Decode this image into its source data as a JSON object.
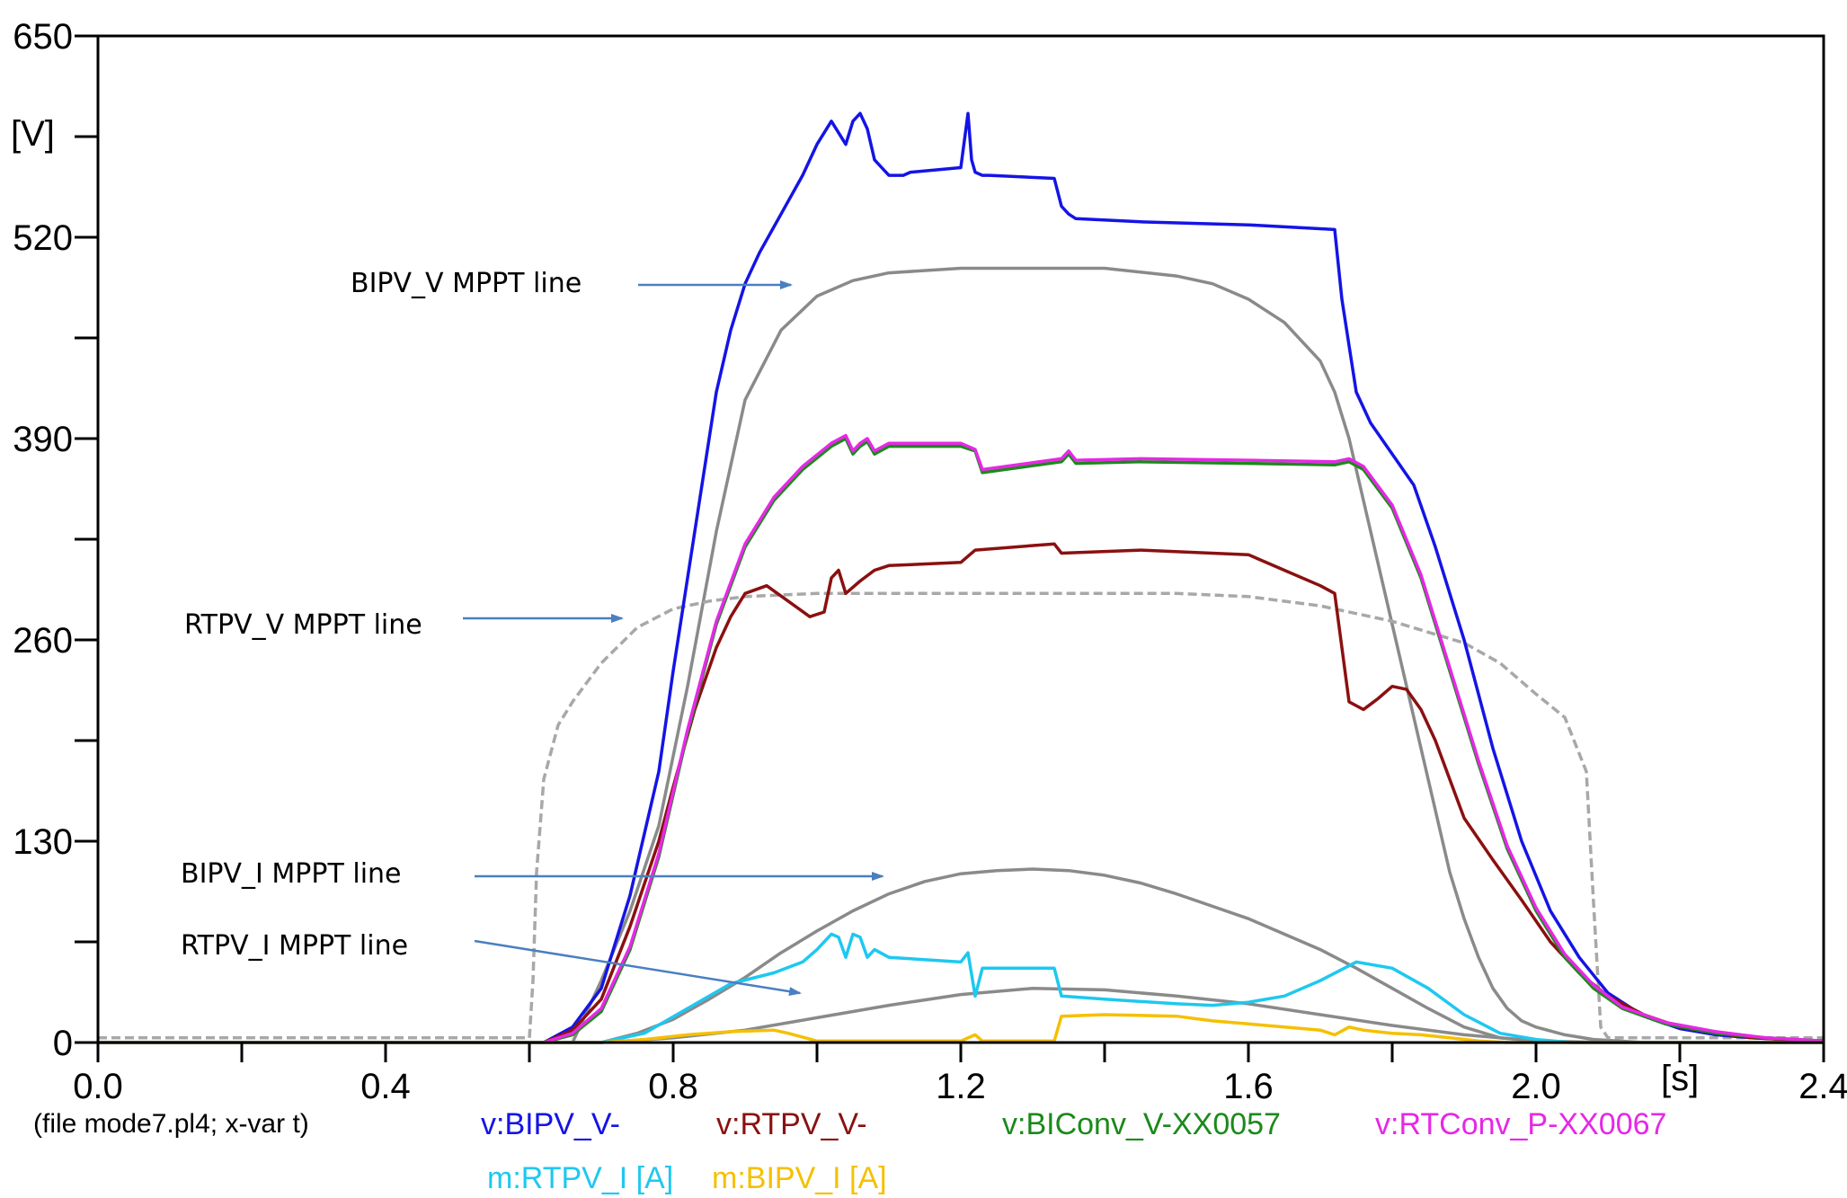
{
  "chart_data": {
    "type": "line",
    "title": "",
    "file_label": "(file mode7.pl4; x-var t)",
    "x_unit": "[s]",
    "y_unit": "[V]",
    "xlim": [
      0.0,
      2.4
    ],
    "ylim": [
      0,
      650
    ],
    "x_ticks": [
      {
        "value": 0.0,
        "label": "0.0"
      },
      {
        "value": 0.4,
        "label": "0.4"
      },
      {
        "value": 0.8,
        "label": "0.8"
      },
      {
        "value": 1.2,
        "label": "1.2"
      },
      {
        "value": 1.6,
        "label": "1.6"
      },
      {
        "value": 2.0,
        "label": "2.0"
      },
      {
        "value": 2.4,
        "label": "2.4"
      }
    ],
    "y_ticks": [
      {
        "value": 0,
        "label": "0"
      },
      {
        "value": 130,
        "label": "130"
      },
      {
        "value": 260,
        "label": "260"
      },
      {
        "value": 390,
        "label": "390"
      },
      {
        "value": 520,
        "label": "520"
      },
      {
        "value": 650,
        "label": "650"
      }
    ],
    "y_minor_ticks": [
      65,
      195,
      325,
      455,
      585
    ],
    "x_minor_ticks": [
      0.2,
      0.6,
      1.0,
      1.4,
      1.8,
      2.2
    ],
    "grid": false,
    "legend": [
      {
        "label": "v:BIPV_V-",
        "color": "#1414e6"
      },
      {
        "label": "v:RTPV_V-",
        "color": "#8b1010"
      },
      {
        "label": "v:BIConv_V-XX0057",
        "color": "#1a8a1a"
      },
      {
        "label": "v:RTConv_P-XX0067",
        "color": "#e628e6"
      },
      {
        "label": "m:RTPV_I [A]",
        "color": "#1ec8f0"
      },
      {
        "label": "m:BIPV_I [A]",
        "color": "#f5c000"
      }
    ],
    "series": [
      {
        "name": "v:BIPV_V-",
        "color": "#1414e6",
        "x": [
          0.0,
          0.62,
          0.66,
          0.7,
          0.74,
          0.78,
          0.8,
          0.83,
          0.86,
          0.88,
          0.9,
          0.92,
          0.95,
          0.98,
          1.0,
          1.02,
          1.04,
          1.05,
          1.06,
          1.07,
          1.08,
          1.09,
          1.1,
          1.12,
          1.13,
          1.2,
          1.21,
          1.215,
          1.22,
          1.23,
          1.24,
          1.33,
          1.34,
          1.35,
          1.36,
          1.45,
          1.6,
          1.72,
          1.73,
          1.74,
          1.75,
          1.76,
          1.77,
          1.8,
          1.83,
          1.86,
          1.9,
          1.94,
          1.98,
          2.02,
          2.06,
          2.1,
          2.15,
          2.2,
          2.25,
          2.3,
          2.35,
          2.4
        ],
        "y": [
          0,
          0,
          10,
          35,
          95,
          175,
          240,
          330,
          420,
          460,
          490,
          510,
          535,
          560,
          580,
          595,
          580,
          595,
          600,
          590,
          570,
          565,
          560,
          560,
          562,
          565,
          600,
          570,
          562,
          560,
          560,
          558,
          540,
          535,
          532,
          530,
          528,
          525,
          480,
          450,
          420,
          410,
          400,
          380,
          360,
          320,
          260,
          190,
          130,
          85,
          55,
          32,
          17,
          9,
          5,
          3,
          2,
          1
        ]
      },
      {
        "name": "v:RTPV_V-",
        "color": "#8b1010",
        "x": [
          0.0,
          0.62,
          0.66,
          0.7,
          0.74,
          0.78,
          0.8,
          0.83,
          0.86,
          0.88,
          0.9,
          0.93,
          0.96,
          0.99,
          1.01,
          1.02,
          1.03,
          1.04,
          1.06,
          1.08,
          1.1,
          1.2,
          1.22,
          1.33,
          1.34,
          1.45,
          1.6,
          1.65,
          1.7,
          1.72,
          1.74,
          1.76,
          1.78,
          1.8,
          1.82,
          1.84,
          1.86,
          1.88,
          1.9,
          1.94,
          1.98,
          2.02,
          2.06,
          2.1,
          2.15,
          2.2,
          2.25,
          2.3,
          2.35,
          2.4
        ],
        "y": [
          0,
          0,
          8,
          28,
          75,
          130,
          165,
          215,
          255,
          275,
          290,
          295,
          285,
          275,
          278,
          300,
          305,
          290,
          298,
          305,
          308,
          310,
          318,
          322,
          316,
          318,
          315,
          305,
          295,
          290,
          220,
          215,
          222,
          230,
          228,
          215,
          195,
          170,
          145,
          118,
          92,
          65,
          45,
          30,
          18,
          10,
          6,
          3,
          2,
          1
        ]
      },
      {
        "name": "v:BIConv_V-XX0057",
        "color": "#1a8a1a",
        "x": [
          0.0,
          0.62,
          0.66,
          0.7,
          0.74,
          0.78,
          0.82,
          0.86,
          0.9,
          0.94,
          0.98,
          1.02,
          1.04,
          1.05,
          1.06,
          1.07,
          1.08,
          1.1,
          1.2,
          1.22,
          1.23,
          1.34,
          1.35,
          1.36,
          1.45,
          1.6,
          1.72,
          1.74,
          1.76,
          1.8,
          1.84,
          1.88,
          1.92,
          1.96,
          2.0,
          2.04,
          2.08,
          2.12,
          2.18,
          2.25,
          2.32,
          2.4
        ],
        "y": [
          0,
          0,
          5,
          20,
          60,
          120,
          200,
          270,
          320,
          350,
          370,
          385,
          390,
          380,
          385,
          388,
          380,
          385,
          385,
          382,
          368,
          375,
          380,
          374,
          375,
          374,
          373,
          375,
          370,
          345,
          300,
          240,
          180,
          125,
          85,
          55,
          35,
          22,
          12,
          6,
          3,
          1
        ]
      },
      {
        "name": "v:RTConv_P-XX0067",
        "color": "#e628e6",
        "x": [
          0.0,
          0.62,
          0.66,
          0.7,
          0.74,
          0.78,
          0.82,
          0.86,
          0.9,
          0.94,
          0.98,
          1.02,
          1.04,
          1.05,
          1.06,
          1.07,
          1.08,
          1.1,
          1.2,
          1.22,
          1.23,
          1.34,
          1.35,
          1.36,
          1.45,
          1.6,
          1.72,
          1.74,
          1.76,
          1.8,
          1.84,
          1.88,
          1.92,
          1.96,
          2.0,
          2.04,
          2.08,
          2.12,
          2.18,
          2.25,
          2.32,
          2.4
        ],
        "y": [
          0,
          0,
          6,
          22,
          62,
          122,
          202,
          272,
          322,
          352,
          372,
          387,
          392,
          382,
          387,
          390,
          382,
          387,
          387,
          383,
          370,
          377,
          382,
          376,
          377,
          376,
          375,
          377,
          372,
          347,
          302,
          242,
          182,
          127,
          87,
          57,
          37,
          23,
          13,
          7,
          3,
          1
        ]
      },
      {
        "name": "m:RTPV_I [A]",
        "color": "#1ec8f0",
        "x": [
          0.0,
          0.7,
          0.76,
          0.82,
          0.88,
          0.94,
          0.98,
          1.0,
          1.02,
          1.03,
          1.04,
          1.05,
          1.06,
          1.07,
          1.08,
          1.1,
          1.2,
          1.21,
          1.22,
          1.23,
          1.33,
          1.34,
          1.4,
          1.5,
          1.55,
          1.6,
          1.65,
          1.7,
          1.75,
          1.8,
          1.85,
          1.9,
          1.95,
          2.0,
          2.05,
          2.1,
          2.2,
          2.4
        ],
        "y": [
          0,
          0,
          6,
          22,
          38,
          45,
          52,
          60,
          70,
          68,
          55,
          70,
          68,
          55,
          60,
          55,
          52,
          58,
          30,
          48,
          48,
          30,
          28,
          25,
          24,
          26,
          30,
          40,
          52,
          48,
          35,
          18,
          6,
          2,
          0,
          0,
          0,
          0
        ]
      },
      {
        "name": "m:BIPV_I [A]",
        "color": "#f5c000",
        "x": [
          0.0,
          0.7,
          0.76,
          0.82,
          0.88,
          0.94,
          0.96,
          1.0,
          1.1,
          1.2,
          1.22,
          1.23,
          1.33,
          1.34,
          1.4,
          1.5,
          1.55,
          1.6,
          1.65,
          1.7,
          1.72,
          1.74,
          1.76,
          1.8,
          1.84,
          1.88,
          1.92,
          1.96,
          2.0,
          2.1,
          2.4
        ],
        "y": [
          0,
          0,
          2,
          5,
          7,
          8,
          6,
          1,
          1,
          1,
          5,
          1,
          1,
          17,
          18,
          17,
          14,
          12,
          10,
          8,
          5,
          10,
          8,
          6,
          5,
          3,
          1,
          0,
          0,
          0,
          0
        ]
      },
      {
        "name": "BIPV_V MPPT line",
        "color": "#8a8a8a",
        "dashed": false,
        "x": [
          0.0,
          0.66,
          0.7,
          0.74,
          0.78,
          0.82,
          0.86,
          0.9,
          0.95,
          1.0,
          1.05,
          1.1,
          1.2,
          1.3,
          1.4,
          1.5,
          1.55,
          1.6,
          1.65,
          1.7,
          1.72,
          1.74,
          1.76,
          1.78,
          1.8,
          1.82,
          1.84,
          1.86,
          1.88,
          1.9,
          1.92,
          1.94,
          1.96,
          1.98,
          2.0,
          2.04,
          2.08,
          2.15,
          2.4
        ],
        "y": [
          0,
          0,
          40,
          85,
          140,
          230,
          330,
          415,
          460,
          482,
          492,
          497,
          500,
          500,
          500,
          495,
          490,
          480,
          465,
          440,
          420,
          390,
          350,
          310,
          270,
          230,
          190,
          150,
          110,
          80,
          55,
          35,
          22,
          14,
          10,
          5,
          2,
          0,
          0
        ]
      },
      {
        "name": "RTPV_V MPPT line",
        "color": "#a8a8a8",
        "dashed": true,
        "x": [
          0.0,
          0.6,
          0.605,
          0.61,
          0.62,
          0.64,
          0.66,
          0.7,
          0.75,
          0.8,
          0.85,
          0.9,
          1.0,
          1.1,
          1.2,
          1.3,
          1.4,
          1.5,
          1.6,
          1.7,
          1.8,
          1.85,
          1.9,
          1.95,
          2.0,
          2.04,
          2.07,
          2.08,
          2.09,
          2.1,
          2.4
        ],
        "y": [
          3,
          3,
          40,
          110,
          170,
          205,
          220,
          245,
          268,
          280,
          285,
          288,
          290,
          290,
          290,
          290,
          290,
          290,
          288,
          282,
          272,
          265,
          258,
          245,
          225,
          210,
          175,
          90,
          10,
          3,
          3
        ]
      },
      {
        "name": "BIPV_I MPPT line",
        "color": "#8a8a8a",
        "dashed": false,
        "x": [
          0.0,
          0.7,
          0.75,
          0.8,
          0.85,
          0.9,
          0.95,
          1.0,
          1.05,
          1.1,
          1.15,
          1.2,
          1.25,
          1.3,
          1.35,
          1.4,
          1.45,
          1.5,
          1.55,
          1.6,
          1.65,
          1.7,
          1.75,
          1.8,
          1.85,
          1.9,
          1.95,
          2.0,
          2.05,
          2.1,
          2.4
        ],
        "y": [
          0,
          0,
          6,
          15,
          28,
          42,
          58,
          72,
          85,
          96,
          104,
          109,
          111,
          112,
          111,
          108,
          103,
          96,
          88,
          80,
          70,
          60,
          48,
          35,
          22,
          10,
          3,
          1,
          0,
          0,
          0
        ]
      },
      {
        "name": "RTPV_I MPPT line",
        "color": "#8a8a8a",
        "dashed": false,
        "x": [
          0.0,
          0.7,
          0.8,
          0.9,
          1.0,
          1.1,
          1.2,
          1.3,
          1.4,
          1.5,
          1.6,
          1.7,
          1.8,
          1.9,
          2.0,
          2.1,
          2.4
        ],
        "y": [
          0,
          0,
          3,
          8,
          16,
          24,
          31,
          35,
          34,
          30,
          25,
          18,
          11,
          5,
          1,
          0,
          0
        ]
      }
    ],
    "annotations": [
      {
        "label": "BIPV_V MPPT line"
      },
      {
        "label": "RTPV_V MPPT line"
      },
      {
        "label": "BIPV_I MPPT line"
      },
      {
        "label": "RTPV_I MPPT line"
      }
    ],
    "annotation_arrow_color": "#4a7fc0"
  }
}
